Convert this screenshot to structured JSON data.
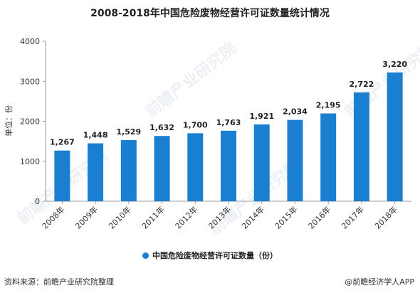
{
  "title": "2008-2018年中国危险废物经营许可证数量统计情况",
  "source": "资料来源：前瞻产业研究院整理",
  "brand": "@前瞻经济学人APP",
  "watermark": "前瞻产业研究院",
  "colors": {
    "bar": "#1a7fd0",
    "axis": "#999999",
    "text": "#222222"
  },
  "chart_data": {
    "type": "bar",
    "categories": [
      "2008年",
      "2009年",
      "2010年",
      "2011年",
      "2012年",
      "2013年",
      "2014年",
      "2015年",
      "2016年",
      "2017年",
      "2018年"
    ],
    "series": [
      {
        "name": "中国危险废物经营许可证数量（份）",
        "values": [
          1267,
          1448,
          1529,
          1632,
          1700,
          1763,
          1921,
          2034,
          2195,
          2722,
          3220
        ]
      }
    ],
    "value_labels": [
      "1,267",
      "1,448",
      "1,529",
      "1,632",
      "1,700",
      "1,763",
      "1,921",
      "2,034",
      "2,195",
      "2,722",
      "3,220"
    ],
    "ylabel": "单位：份",
    "ylim": [
      0,
      4000
    ],
    "yticks": [
      0,
      1000,
      2000,
      3000,
      4000
    ],
    "legend_position": "bottom",
    "grid": false
  }
}
